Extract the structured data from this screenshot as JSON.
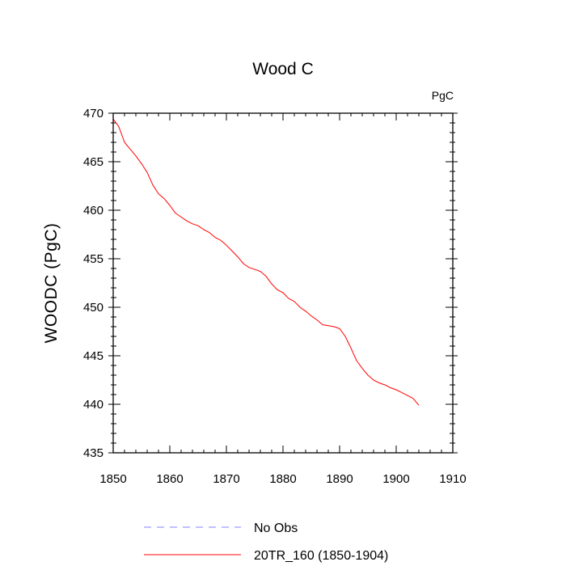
{
  "chart_data": {
    "type": "line",
    "title": "Wood C",
    "units": "PgC",
    "ylabel": "WOODC  (PgC)",
    "xlabel": "",
    "xlim": [
      1850,
      1910
    ],
    "ylim": [
      435,
      470
    ],
    "xticks": [
      1850,
      1860,
      1870,
      1880,
      1890,
      1900,
      1910
    ],
    "yticks": [
      435,
      440,
      445,
      450,
      455,
      460,
      465,
      470
    ],
    "grid": false,
    "legend_position": "bottom",
    "series": [
      {
        "name": "No Obs",
        "color": "#8080ff",
        "dash": "dashed",
        "x": [],
        "y": []
      },
      {
        "name": "20TR_160 (1850-1904)",
        "color": "#ff0000",
        "dash": "solid",
        "x": [
          1850,
          1851,
          1852,
          1853,
          1854,
          1855,
          1856,
          1857,
          1858,
          1859,
          1860,
          1861,
          1862,
          1863,
          1864,
          1865,
          1866,
          1867,
          1868,
          1869,
          1870,
          1871,
          1872,
          1873,
          1874,
          1875,
          1876,
          1877,
          1878,
          1879,
          1880,
          1881,
          1882,
          1883,
          1884,
          1885,
          1886,
          1887,
          1888,
          1889,
          1890,
          1891,
          1892,
          1893,
          1894,
          1895,
          1896,
          1897,
          1898,
          1899,
          1900,
          1901,
          1902,
          1903,
          1904
        ],
        "y": [
          469.4,
          468.6,
          467.0,
          466.3,
          465.6,
          464.8,
          463.9,
          462.6,
          461.7,
          461.2,
          460.5,
          459.7,
          459.3,
          458.9,
          458.6,
          458.4,
          458.0,
          457.7,
          457.2,
          456.9,
          456.4,
          455.8,
          455.2,
          454.5,
          454.1,
          453.9,
          453.7,
          453.2,
          452.4,
          451.8,
          451.5,
          450.9,
          450.6,
          450.0,
          449.6,
          449.1,
          448.7,
          448.2,
          448.1,
          448.0,
          447.8,
          447.0,
          445.8,
          444.5,
          443.7,
          443.0,
          442.5,
          442.2,
          442.0,
          441.7,
          441.5,
          441.2,
          440.9,
          440.6,
          439.9
        ]
      }
    ]
  }
}
